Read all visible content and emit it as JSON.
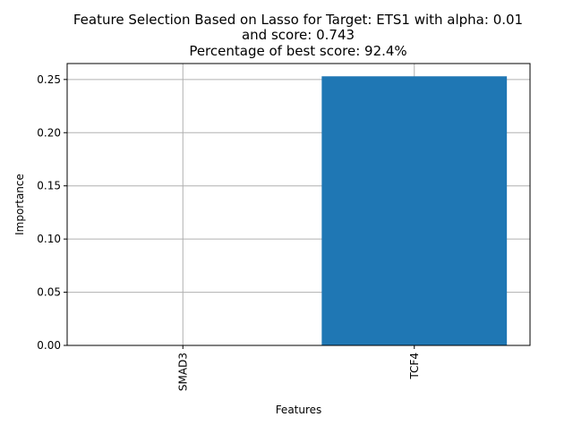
{
  "chart_data": {
    "type": "bar",
    "title_lines": [
      "Feature Selection Based on Lasso for Target: ETS1 with alpha: 0.01",
      "and score: 0.743",
      "Percentage of best score: 92.4%"
    ],
    "xlabel": "Features",
    "ylabel": "Importance",
    "categories": [
      "SMAD3",
      "TCF4"
    ],
    "values": [
      0.0,
      0.253
    ],
    "ylim": [
      0,
      0.265
    ],
    "yticks": [
      0.0,
      0.05,
      0.1,
      0.15,
      0.2,
      0.25
    ],
    "ytick_labels": [
      "0.00",
      "0.05",
      "0.10",
      "0.15",
      "0.20",
      "0.25"
    ],
    "grid": true,
    "bar_color": "#1f77b4",
    "grid_color": "#b0b0b0"
  }
}
